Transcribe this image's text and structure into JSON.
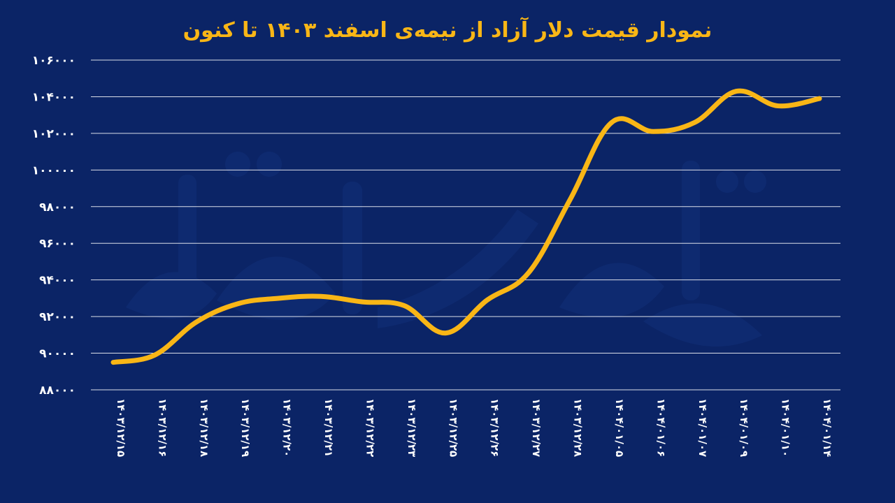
{
  "title": "نمودار قیمت دلار آزاد از نیمه‌ی اسفند ۱۴۰۳ تا کنون",
  "colors": {
    "background": "#0b2466",
    "line": "#f9b616",
    "text": "#ffffff",
    "watermark": "#1f4aa8"
  },
  "watermark_icon": "watermark-logo",
  "chart_data": {
    "type": "line",
    "title": "نمودار قیمت دلار آزاد از نیمه‌ی اسفند ۱۴۰۳ تا کنون",
    "xlabel": "",
    "ylabel": "",
    "ylim": [
      88000,
      106000
    ],
    "yticks": [
      88000,
      90000,
      92000,
      94000,
      96000,
      98000,
      100000,
      102000,
      104000,
      106000
    ],
    "ytick_labels": [
      "۸۸۰۰۰",
      "۹۰۰۰۰",
      "۹۲۰۰۰",
      "۹۴۰۰۰",
      "۹۶۰۰۰",
      "۹۸۰۰۰",
      "۱۰۰۰۰۰",
      "۱۰۲۰۰۰",
      "۱۰۴۰۰۰",
      "۱۰۶۰۰۰"
    ],
    "grid": true,
    "legend": "none",
    "categories": [
      "۱۴۰۳/۱۲/۱۵",
      "۱۴۰۳/۱۲/۱۶",
      "۱۴۰۳/۱۲/۱۸",
      "۱۴۰۳/۱۲/۱۹",
      "۱۴۰۳/۱۲/۲۰",
      "۱۴۰۳/۱۲/۲۱",
      "۱۴۰۳/۱۲/۲۲",
      "۱۴۰۳/۱۲/۲۳",
      "۱۴۰۳/۱۲/۲۵",
      "۱۴۰۳/۱۲/۲۶",
      "۱۴۰۳/۱۲/۲۷",
      "۱۴۰۳/۱۲/۲۸",
      "۱۴۰۴/۰۱/۰۵",
      "۱۴۰۴/۰۱/۰۶",
      "۱۴۰۴/۰۱/۰۷",
      "۱۴۰۴/۰۱/۰۹",
      "۱۴۰۴/۰۱/۱۰",
      "۱۴۰۴/۰۱/۱۴"
    ],
    "series": [
      {
        "values": [
          89500,
          89900,
          91700,
          92700,
          93000,
          93100,
          92800,
          92600,
          91100,
          92900,
          94400,
          98400,
          102600,
          102100,
          102600,
          104300,
          103500,
          103900
        ]
      }
    ]
  }
}
